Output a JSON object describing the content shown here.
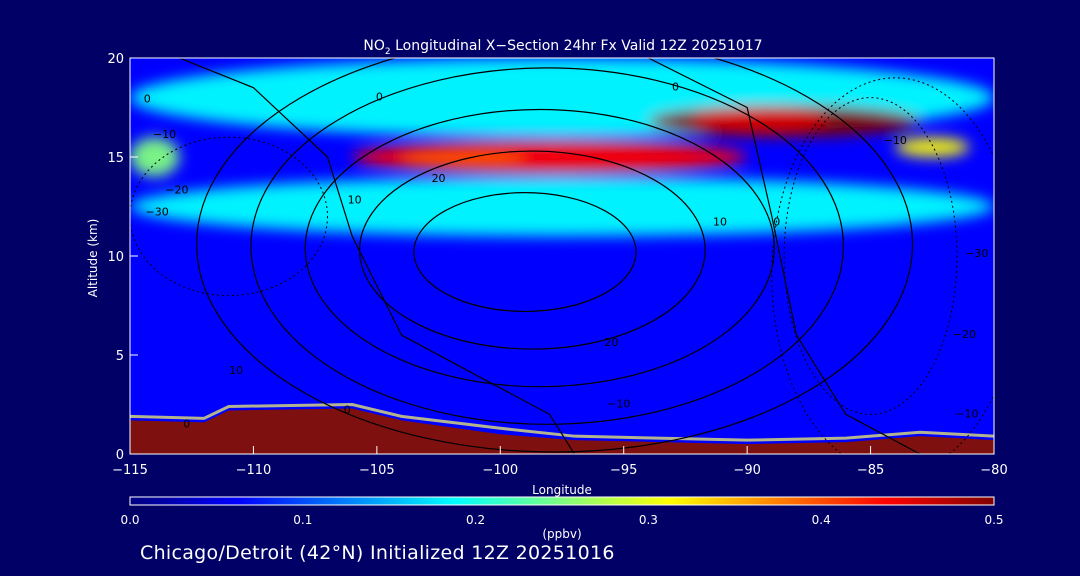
{
  "chart_data": {
    "type": "heatmap",
    "title": {
      "species": "NO",
      "subscript": "2",
      "rest": " Longitudinal X−Section 24hr  Fx Valid 12Z 20251017"
    },
    "xlabel": "Longitude",
    "ylabel": "Altitude (km)",
    "xlim": [
      -115,
      -80
    ],
    "ylim": [
      0,
      20
    ],
    "xticks": [
      {
        "value": -115,
        "label": "−115"
      },
      {
        "value": -110,
        "label": "−110"
      },
      {
        "value": -105,
        "label": "−105"
      },
      {
        "value": -100,
        "label": "−100"
      },
      {
        "value": -95,
        "label": "−95"
      },
      {
        "value": -90,
        "label": "−90"
      },
      {
        "value": -85,
        "label": "−85"
      },
      {
        "value": -80,
        "label": "−80"
      }
    ],
    "yticks": [
      {
        "value": 0,
        "label": "0"
      },
      {
        "value": 5,
        "label": "5"
      },
      {
        "value": 10,
        "label": "10"
      },
      {
        "value": 15,
        "label": "15"
      },
      {
        "value": 20,
        "label": "20"
      }
    ],
    "colorbar": {
      "unit": "(ppbv)",
      "min": 0.0,
      "max": 0.5,
      "ticks": [
        {
          "value": 0.0,
          "label": "0.0"
        },
        {
          "value": 0.1,
          "label": "0.1"
        },
        {
          "value": 0.2,
          "label": "0.2"
        },
        {
          "value": 0.3,
          "label": "0.3"
        },
        {
          "value": 0.4,
          "label": "0.4"
        },
        {
          "value": 0.5,
          "label": "0.5"
        }
      ],
      "colormap": [
        "#00007f",
        "#0000ff",
        "#007fff",
        "#00ffff",
        "#7fff7f",
        "#ffff00",
        "#ff7f00",
        "#ff0000",
        "#7f0000"
      ]
    },
    "field_features": [
      {
        "feature": "background",
        "value": 0.06
      },
      {
        "feature": "upper layer",
        "lon": [
          -115,
          -80
        ],
        "alt": [
          16,
          20
        ],
        "value": 0.16
      },
      {
        "feature": "mid band",
        "lon": [
          -115,
          -80
        ],
        "alt": [
          11,
          14
        ],
        "value": 0.16
      },
      {
        "feature": "plume west",
        "lon": [
          -106,
          -90
        ],
        "alt": [
          14.2,
          15.8
        ],
        "value": 0.43
      },
      {
        "feature": "plume east",
        "lon": [
          -94,
          -83
        ],
        "alt": [
          16.0,
          17.6
        ],
        "value": 0.47
      },
      {
        "feature": "band west",
        "lon": [
          -115,
          -113
        ],
        "alt": [
          14,
          16
        ],
        "value": 0.25
      },
      {
        "feature": "band east",
        "lon": [
          -84,
          -81
        ],
        "alt": [
          15,
          16
        ],
        "value": 0.3
      },
      {
        "feature": "surface layer",
        "lon": [
          -115,
          -80
        ],
        "alt": [
          0,
          2
        ],
        "value": 0.5
      }
    ],
    "contour_labels": [
      {
        "text": "0",
        "lon": -114.3,
        "alt": 17.9
      },
      {
        "text": "0",
        "lon": -104.9,
        "alt": 18.0
      },
      {
        "text": "0",
        "lon": -92.9,
        "alt": 18.5
      },
      {
        "text": "−10",
        "lon": -113.6,
        "alt": 16.1
      },
      {
        "text": "−20",
        "lon": -113.1,
        "alt": 13.3
      },
      {
        "text": "−30",
        "lon": -113.9,
        "alt": 12.2
      },
      {
        "text": "10",
        "lon": -105.9,
        "alt": 12.8
      },
      {
        "text": "20",
        "lon": -102.5,
        "alt": 13.9
      },
      {
        "text": "10",
        "lon": -91.1,
        "alt": 11.7
      },
      {
        "text": "0",
        "lon": -88.8,
        "alt": 11.7
      },
      {
        "text": "−10",
        "lon": -84.0,
        "alt": 15.8
      },
      {
        "text": "−30",
        "lon": -80.7,
        "alt": 10.1
      },
      {
        "text": "−20",
        "lon": -81.2,
        "alt": 6.0
      },
      {
        "text": "−10",
        "lon": -81.1,
        "alt": 2.0
      },
      {
        "text": "20",
        "lon": -95.5,
        "alt": 5.6
      },
      {
        "text": "−10",
        "lon": -95.2,
        "alt": 2.5
      },
      {
        "text": "10",
        "lon": -110.7,
        "alt": 4.2
      },
      {
        "text": "0",
        "lon": -106.2,
        "alt": 2.2
      },
      {
        "text": "0",
        "lon": -112.7,
        "alt": 1.5
      }
    ]
  },
  "footer": "Chicago/Detroit (42°N) Initialized 12Z 20251016"
}
